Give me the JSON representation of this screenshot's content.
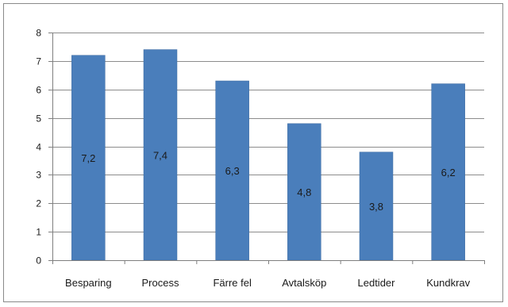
{
  "chart_data": {
    "type": "bar",
    "categories": [
      "Besparing",
      "Process",
      "Färre fel",
      "Avtalsköp",
      "Ledtider",
      "Kundkrav"
    ],
    "values": [
      7.2,
      7.4,
      6.3,
      4.8,
      3.8,
      6.2
    ],
    "data_labels": [
      "7,2",
      "7,4",
      "6,3",
      "4,8",
      "3,8",
      "6,2"
    ],
    "title": "",
    "xlabel": "",
    "ylabel": "",
    "ylim": [
      0,
      8
    ],
    "yticks": [
      0,
      1,
      2,
      3,
      4,
      5,
      6,
      7,
      8
    ],
    "grid": true,
    "legend": "none",
    "bar_color": "#4a7ebb",
    "bar_edge_color": "#3d6aa0",
    "grid_color": "#8c8c8c"
  }
}
